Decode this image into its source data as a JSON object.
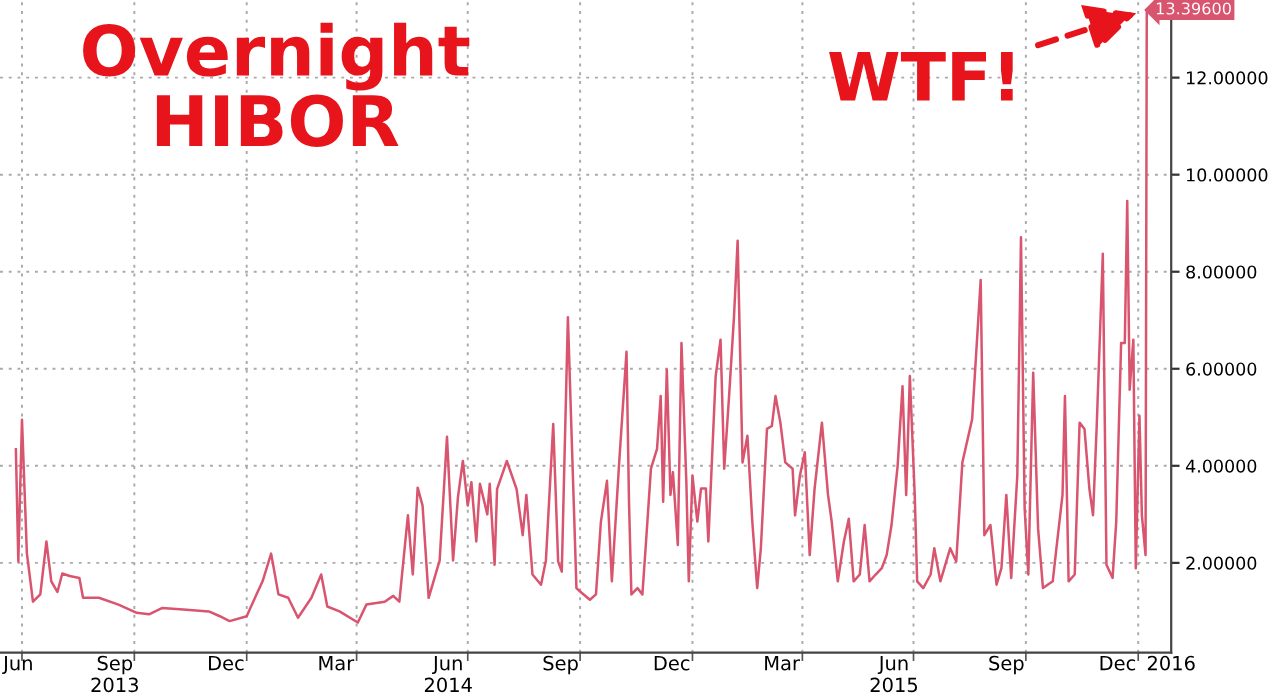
{
  "chart_data": {
    "type": "line",
    "title": "Overnight\nHIBOR",
    "annotations": [
      {
        "text": "WTF!",
        "x": "2016-01-08",
        "y": 13.396
      }
    ],
    "x": [
      "2013-06-26",
      "2013-06-28",
      "2013-07-01",
      "2013-07-05",
      "2013-07-10",
      "2013-07-16",
      "2013-07-21",
      "2013-07-25",
      "2013-07-30",
      "2013-08-03",
      "2013-08-09",
      "2013-08-17",
      "2013-08-20",
      "2013-09-02",
      "2013-09-18",
      "2013-10-03",
      "2013-10-13",
      "2013-10-24",
      "2013-11-10",
      "2013-12-01",
      "2013-12-10",
      "2013-12-18",
      "2014-01-01",
      "2014-01-09",
      "2014-01-14",
      "2014-01-21",
      "2014-01-27",
      "2014-02-04",
      "2014-02-12",
      "2014-02-23",
      "2014-03-03",
      "2014-03-08",
      "2014-03-18",
      "2014-04-02",
      "2014-04-09",
      "2014-04-24",
      "2014-05-01",
      "2014-05-06",
      "2014-05-13",
      "2014-05-17",
      "2014-05-21",
      "2014-05-25",
      "2014-05-30",
      "2014-06-08",
      "2014-06-14",
      "2014-06-19",
      "2014-06-23",
      "2014-06-27",
      "2014-07-01",
      "2014-07-04",
      "2014-07-08",
      "2014-07-11",
      "2014-07-17",
      "2014-07-19",
      "2014-07-23",
      "2014-07-25",
      "2014-08-02",
      "2014-08-10",
      "2014-08-15",
      "2014-08-18",
      "2014-08-23",
      "2014-08-30",
      "2014-09-03",
      "2014-09-09",
      "2014-09-13",
      "2014-09-16",
      "2014-09-21",
      "2014-09-28",
      "2014-10-01",
      "2014-10-09",
      "2014-10-14",
      "2014-10-18",
      "2014-10-23",
      "2014-10-27",
      "2014-11-02",
      "2014-11-08",
      "2014-11-10",
      "2014-11-12",
      "2014-11-17",
      "2014-11-21",
      "2014-11-24",
      "2014-11-28",
      "2014-12-03",
      "2014-12-06",
      "2014-12-08",
      "2014-12-11",
      "2014-12-14",
      "2014-12-16",
      "2014-12-20",
      "2014-12-23",
      "2014-12-27",
      "2014-12-29",
      "2015-01-01",
      "2015-01-05",
      "2015-01-08",
      "2015-01-12",
      "2015-01-14",
      "2015-01-17",
      "2015-01-20",
      "2015-01-24",
      "2015-01-27",
      "2015-01-31",
      "2015-02-04",
      "2015-02-07",
      "2015-02-11",
      "2015-02-15",
      "2015-02-19",
      "2015-02-23",
      "2015-02-26",
      "2015-03-03",
      "2015-03-07",
      "2015-03-10",
      "2015-03-14",
      "2015-03-18",
      "2015-03-24",
      "2015-03-26",
      "2015-03-30",
      "2015-04-03",
      "2015-04-07",
      "2015-04-11",
      "2015-04-17",
      "2015-04-22",
      "2015-04-25",
      "2015-04-30",
      "2015-05-05",
      "2015-05-09",
      "2015-05-13",
      "2015-05-18",
      "2015-05-22",
      "2015-05-26",
      "2015-05-31",
      "2015-06-05",
      "2015-06-09",
      "2015-06-13",
      "2015-06-18",
      "2015-06-22",
      "2015-06-25",
      "2015-06-28",
      "2015-07-02",
      "2015-07-04",
      "2015-07-09",
      "2015-07-15",
      "2015-07-18",
      "2015-07-23",
      "2015-07-31",
      "2015-08-05",
      "2015-08-10",
      "2015-08-18",
      "2015-08-25",
      "2015-08-28",
      "2015-09-02",
      "2015-09-07",
      "2015-09-11",
      "2015-09-15",
      "2015-09-19",
      "2015-09-24",
      "2015-09-27",
      "2015-09-30",
      "2015-10-03",
      "2015-10-07",
      "2015-10-11",
      "2015-10-15",
      "2015-10-23",
      "2015-10-26",
      "2015-10-31",
      "2015-11-02",
      "2015-11-05",
      "2015-11-10",
      "2015-11-14",
      "2015-11-18",
      "2015-11-22",
      "2015-11-25",
      "2015-11-28",
      "2015-12-03",
      "2015-12-06",
      "2015-12-11",
      "2015-12-14",
      "2015-12-18",
      "2015-12-21",
      "2015-12-23",
      "2015-12-25",
      "2015-12-28",
      "2015-12-30",
      "2016-01-02",
      "2016-01-04",
      "2016-01-07",
      "2016-01-08"
    ],
    "series": [
      {
        "color": "#d9546e",
        "values": [
          4.34,
          2.03,
          4.95,
          2.2,
          1.2,
          1.35,
          2.44,
          1.62,
          1.4,
          1.78,
          1.73,
          1.69,
          1.28,
          1.28,
          1.14,
          0.97,
          0.94,
          1.07,
          1.04,
          1.0,
          0.9,
          0.8,
          0.9,
          1.35,
          1.62,
          2.19,
          1.35,
          1.28,
          0.87,
          1.28,
          1.76,
          1.1,
          1.0,
          0.77,
          1.14,
          1.2,
          1.32,
          1.2,
          2.98,
          1.76,
          3.55,
          3.18,
          1.28,
          2.05,
          4.6,
          2.05,
          3.36,
          4.1,
          3.18,
          3.66,
          2.44,
          3.63,
          3.0,
          3.63,
          1.96,
          3.52,
          4.1,
          3.52,
          2.57,
          3.4,
          1.76,
          1.55,
          2.05,
          4.86,
          2.03,
          1.82,
          7.06,
          1.48,
          1.41,
          1.24,
          1.35,
          2.84,
          3.69,
          1.62,
          4.07,
          6.35,
          3.3,
          1.35,
          1.48,
          1.35,
          2.44,
          3.94,
          4.35,
          5.44,
          3.26,
          5.98,
          3.4,
          3.87,
          2.37,
          6.53,
          3.66,
          1.62,
          3.8,
          2.85,
          3.53,
          3.53,
          2.44,
          4.14,
          5.85,
          6.6,
          3.94,
          5.44,
          7.07,
          8.64,
          4.07,
          4.62,
          2.85,
          1.48,
          2.3,
          4.76,
          4.82,
          5.44,
          4.89,
          4.07,
          3.94,
          2.98,
          3.8,
          4.28,
          2.16,
          3.53,
          4.89,
          3.4,
          2.85,
          1.62,
          2.44,
          2.91,
          1.62,
          1.76,
          2.78,
          1.62,
          1.76,
          1.89,
          2.16,
          2.78,
          4.0,
          5.64,
          3.4,
          5.85,
          3.4,
          1.62,
          1.48,
          1.76,
          2.3,
          1.62,
          2.3,
          2.03,
          4.07,
          4.96,
          7.83,
          2.57,
          2.78,
          1.55,
          1.89,
          3.4,
          1.69,
          3.8,
          8.71,
          3.12,
          1.76,
          5.92,
          2.71,
          1.48,
          1.62,
          2.3,
          3.4,
          5.44,
          1.62,
          1.76,
          4.89,
          4.76,
          3.53,
          2.98,
          4.82,
          8.37,
          1.96,
          1.69,
          2.85,
          6.53,
          6.53,
          9.46,
          5.57,
          6.6,
          1.89,
          5.03,
          2.98,
          2.16,
          13.396
        ],
        "value_labels": [
          null,
          null,
          null,
          null,
          null,
          null,
          null,
          null,
          null,
          null,
          null,
          null,
          null,
          null,
          null,
          null,
          null,
          null,
          null,
          null,
          null,
          null,
          null,
          null,
          null,
          null,
          null,
          null,
          null,
          null,
          null,
          null,
          null,
          null,
          null,
          null,
          null,
          null,
          null,
          null,
          null,
          null,
          null,
          null,
          null,
          null,
          null,
          null,
          null,
          null,
          null,
          null,
          null,
          null,
          null,
          null,
          null,
          null,
          null,
          null,
          null,
          null,
          null,
          null,
          null,
          null,
          null,
          null,
          null,
          null,
          null,
          null,
          null,
          null,
          null,
          null,
          null,
          null,
          null,
          null,
          null,
          null,
          null,
          null,
          null,
          null,
          null,
          null,
          null,
          null,
          null,
          null,
          null,
          null,
          null,
          null,
          null,
          null,
          null,
          null,
          null,
          null,
          null,
          null,
          null,
          null,
          null,
          null,
          null,
          null,
          null,
          null,
          null,
          null,
          null,
          null,
          null,
          null,
          null,
          null,
          null,
          null,
          null,
          null,
          null,
          null,
          null,
          null,
          null,
          null,
          null,
          null,
          null,
          null,
          null,
          null,
          null,
          null,
          null,
          null,
          null,
          null,
          null,
          null,
          null,
          null,
          null,
          null,
          null,
          null,
          null,
          null,
          null,
          null,
          null,
          null,
          null,
          null,
          null,
          null,
          null,
          null,
          null,
          null,
          null,
          null,
          null,
          null,
          null,
          null,
          null,
          null,
          null,
          null,
          null,
          null,
          null,
          null,
          null,
          null,
          null,
          null,
          null,
          null,
          null,
          null,
          "13.39600"
        ]
      }
    ],
    "xlim": [
      "2013-06-13",
      "2016-01-28"
    ],
    "xticks": [
      {
        "value": "2013-06-28",
        "label": "Jun"
      },
      {
        "value": "2013-09-15",
        "label": "Sep\n2013"
      },
      {
        "value": "2013-12-15",
        "label": "Dec"
      },
      {
        "value": "2014-03-15",
        "label": "Mar"
      },
      {
        "value": "2014-06-15",
        "label": "Jun\n2014"
      },
      {
        "value": "2014-09-15",
        "label": "Sep"
      },
      {
        "value": "2014-12-15",
        "label": "Dec"
      },
      {
        "value": "2015-03-15",
        "label": "Mar"
      },
      {
        "value": "2015-06-15",
        "label": "Jun\n2015"
      },
      {
        "value": "2015-09-15",
        "label": "Sep"
      },
      {
        "value": "2015-12-15",
        "label": "Dec"
      },
      {
        "value": "2016-01-28",
        "label": "2016"
      },
      {
        "value": "2013-07-01",
        "label": null
      },
      {
        "value": "2013-10-01",
        "label": null
      },
      {
        "value": "2014-01-01",
        "label": null
      },
      {
        "value": "2014-04-01",
        "label": null
      },
      {
        "value": "2014-07-01",
        "label": null
      },
      {
        "value": "2014-10-01",
        "label": null
      },
      {
        "value": "2015-01-01",
        "label": null
      },
      {
        "value": "2015-04-01",
        "label": null
      },
      {
        "value": "2015-07-01",
        "label": null
      },
      {
        "value": "2015-10-01",
        "label": null
      },
      {
        "value": "2016-01-01",
        "label": null
      }
    ],
    "ylim": [
      0.15,
      13.6
    ],
    "yticks": [
      {
        "value": 2,
        "label": "2.00000"
      },
      {
        "value": 4,
        "label": "4.00000"
      },
      {
        "value": 6,
        "label": "6.00000"
      },
      {
        "value": 8,
        "label": "8.00000"
      },
      {
        "value": 10,
        "label": "10.00000"
      },
      {
        "value": 12,
        "label": "12.00000"
      }
    ],
    "grid": true
  }
}
